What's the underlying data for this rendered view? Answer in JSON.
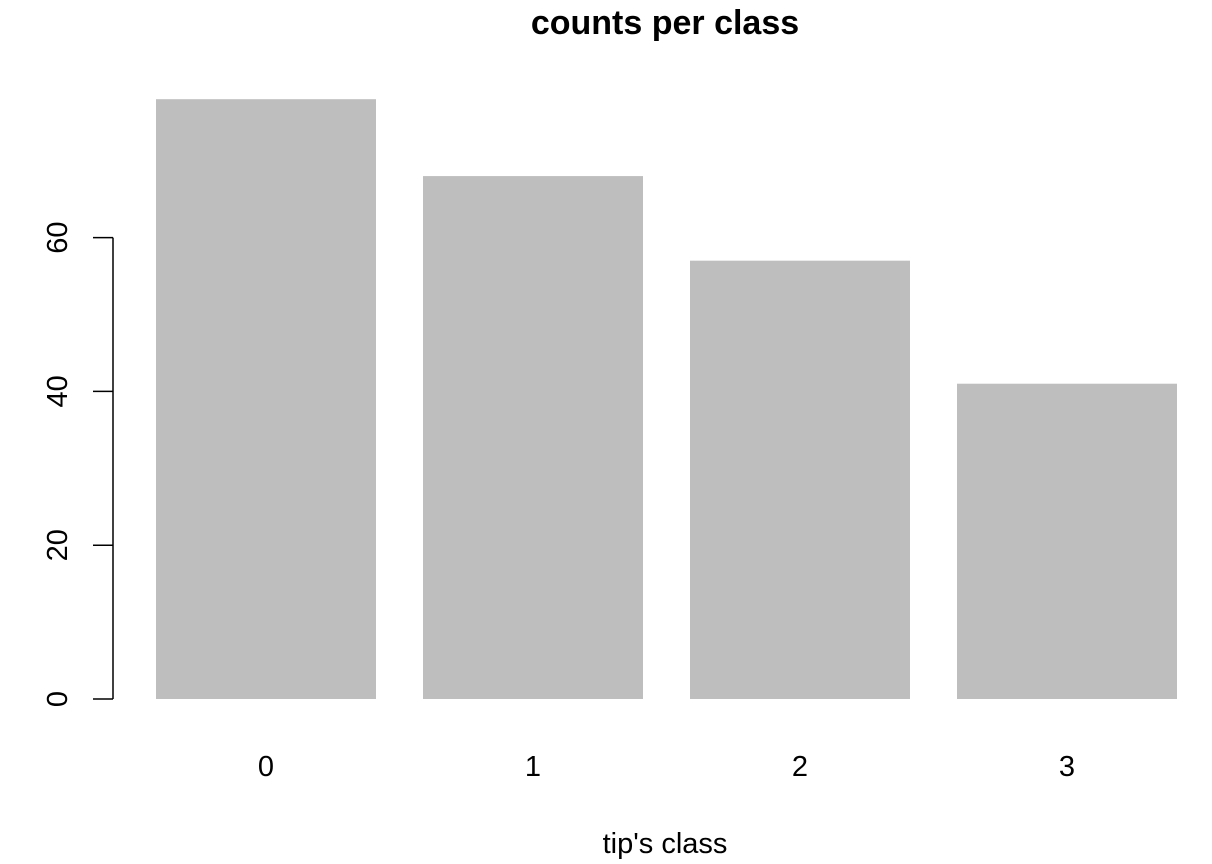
{
  "chart_data": {
    "type": "bar",
    "title": "counts per class",
    "xlabel": "tip's class",
    "ylabel": "",
    "categories": [
      "0",
      "1",
      "2",
      "3"
    ],
    "values": [
      78,
      68,
      57,
      41
    ],
    "ylim": [
      0,
      78
    ],
    "yticks": [
      0,
      20,
      40,
      60
    ],
    "y_tick_labels": [
      "0",
      "20",
      "40",
      "60"
    ],
    "grid": false,
    "legend": "none",
    "colors": {
      "bar": "#bebebe",
      "axis": "#000000",
      "text": "#000000",
      "background": "#ffffff"
    }
  }
}
